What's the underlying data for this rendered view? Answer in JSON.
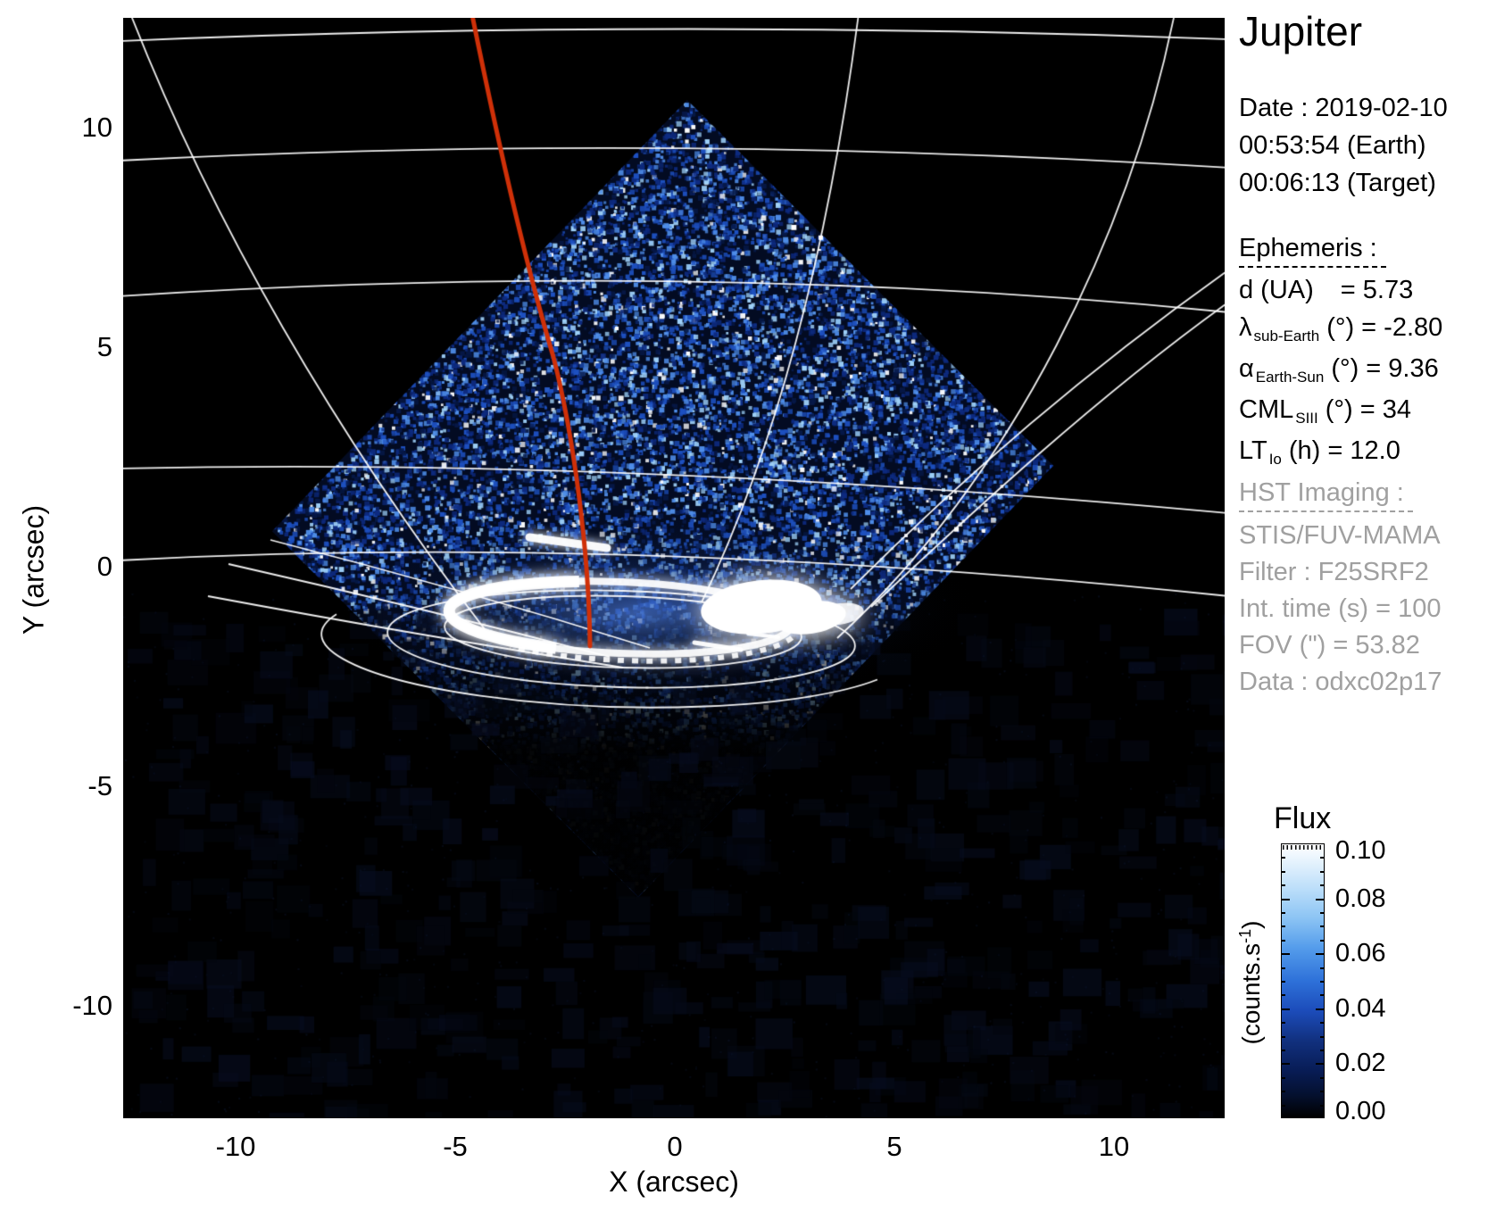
{
  "title": "Jupiter",
  "observation": {
    "date": "Date : 2019-02-10",
    "earth_time": "00:53:54 (Earth)",
    "target_time": "00:06:13 (Target)"
  },
  "ephemeris": {
    "heading": "Ephemeris :",
    "rows": [
      {
        "pre": "d (UA)",
        "sub": "",
        "post": "= 5.73",
        "gap": true
      },
      {
        "pre": "λ",
        "sub": "sub-Earth",
        "post": "(°) = -2.80",
        "gap": false
      },
      {
        "pre": "α",
        "sub": "Earth-Sun",
        "post": "(°) = 9.36",
        "gap": false
      },
      {
        "pre": "CML",
        "sub": "SIII",
        "post": "(°) = 34",
        "gap": false
      },
      {
        "pre": "LT",
        "sub": "Io",
        "post": "(h) = 12.0",
        "gap": false
      }
    ]
  },
  "hst_imaging": {
    "heading": "HST Imaging :",
    "lines": [
      "STIS/FUV-MAMA",
      "Filter : F25SRF2",
      "Int. time (s) = 100",
      "FOV (\") = 53.82",
      "Data : odxc02p17"
    ],
    "text_color": "#a0a0a0"
  },
  "colorbar": {
    "title": "Flux",
    "unit_pre": "(counts.s",
    "unit_sup": "-1",
    "unit_post": ")",
    "tick_labels": [
      "0.10",
      "0.08",
      "0.06",
      "0.04",
      "0.02",
      "0.00"
    ]
  },
  "axes": {
    "x_label": "X (arcsec)",
    "y_label": "Y (arcsec)",
    "x_tick_labels": [
      "-10",
      "-5",
      "0",
      "5",
      "10"
    ],
    "y_tick_labels": [
      "10",
      "5",
      "0",
      "-5",
      "-10"
    ]
  },
  "chart_data": {
    "type": "heatmap",
    "title": "Jupiter - HST STIS/FUV-MAMA far-UV image of the north auroral region",
    "xlabel": "X (arcsec)",
    "ylabel": "Y (arcsec)",
    "xlim": [
      -12.5,
      12.5
    ],
    "ylim": [
      -12.5,
      12.5
    ],
    "x_tick_values": [
      -10,
      -5,
      0,
      5,
      10
    ],
    "y_tick_values": [
      10,
      5,
      0,
      -5,
      -10
    ],
    "grid": "planetocentric graticule overlaid in white",
    "legend_position": "colorbar right",
    "colorbar": {
      "label": "Flux (counts.s-1)",
      "range": [
        0.0,
        0.1
      ],
      "tick_values": [
        0.1,
        0.08,
        0.06,
        0.04,
        0.02,
        0.0
      ],
      "palette_low_to_high": [
        "#000000",
        "#081c55",
        "#1c4cba",
        "#549ceb",
        "#bddffa",
        "#ffffff"
      ]
    },
    "features": {
      "background_color": "#000000",
      "graticule_color": "#ffffff",
      "detector_fov_diamond_arcsec": {
        "top": [
          0.28,
          10.63
        ],
        "right": [
          8.62,
          2.3
        ],
        "bottom": [
          -0.83,
          -7.52
        ],
        "left": [
          -9.17,
          0.81
        ]
      },
      "auroral_oval_center_arcsec": [
        -1.24,
        -1.12
      ],
      "auroral_oval_radii_arcsec": [
        3.9,
        0.8
      ],
      "bright_spot_center_arcsec": [
        2.0,
        -0.95
      ],
      "faint_arc_streak_arcsec": [
        [
          -3.3,
          0.65
        ],
        [
          -1.6,
          0.45
        ]
      ],
      "red_track": {
        "color": "#cf3008",
        "from_arcsec": [
          -4.6,
          12.5
        ],
        "to_arcsec": [
          -1.9,
          -1.8
        ]
      },
      "speckle_palette": [
        "#061848",
        "#0d2a80",
        "#1d50c0",
        "#4f8eea",
        "#9fd2fa",
        "#ffffff"
      ]
    }
  }
}
